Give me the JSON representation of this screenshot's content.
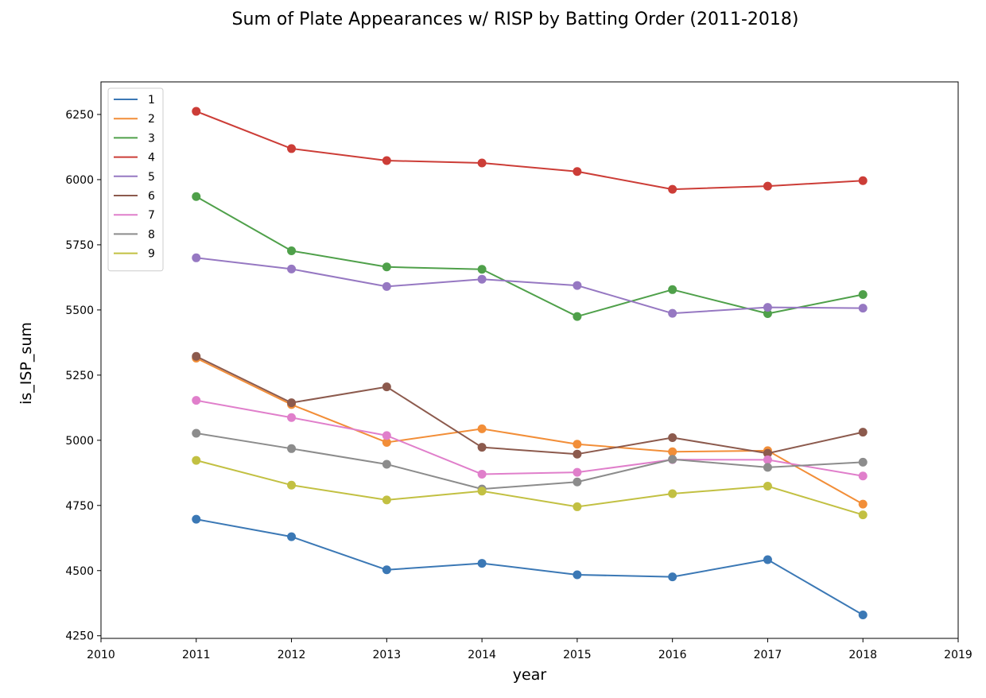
{
  "chart_data": {
    "type": "line",
    "title": "Sum of Plate Appearances w/ RISP by Batting Order (2011-2018)",
    "xlabel": "year",
    "ylabel": "is_ISP_sum",
    "x": [
      2011,
      2012,
      2013,
      2014,
      2015,
      2016,
      2017,
      2018
    ],
    "xlim": [
      2010,
      2019
    ],
    "ylim": [
      4240,
      6375
    ],
    "x_ticks": [
      2010,
      2011,
      2012,
      2013,
      2014,
      2015,
      2016,
      2017,
      2018,
      2019
    ],
    "y_ticks": [
      4250,
      4500,
      4750,
      5000,
      5250,
      5500,
      5750,
      6000,
      6250
    ],
    "grid": false,
    "legend_position": "top-left",
    "series": [
      {
        "name": "1",
        "color": "#3b78b5",
        "values": [
          4697,
          4630,
          4503,
          4528,
          4484,
          4476,
          4542,
          4330
        ]
      },
      {
        "name": "2",
        "color": "#f28e38",
        "values": [
          5315,
          5137,
          4992,
          5044,
          4985,
          4956,
          4960,
          4755
        ]
      },
      {
        "name": "3",
        "color": "#4fa04a",
        "values": [
          5935,
          5727,
          5665,
          5656,
          5475,
          5578,
          5486,
          5559
        ]
      },
      {
        "name": "4",
        "color": "#cc3d37",
        "values": [
          6262,
          6119,
          6073,
          6064,
          6031,
          5963,
          5975,
          5996
        ]
      },
      {
        "name": "5",
        "color": "#9678c2",
        "values": [
          5700,
          5657,
          5590,
          5618,
          5594,
          5487,
          5510,
          5507
        ]
      },
      {
        "name": "6",
        "color": "#8c5a4d",
        "values": [
          5322,
          5144,
          5205,
          4973,
          4947,
          5010,
          4950,
          5031
        ]
      },
      {
        "name": "7",
        "color": "#e07fcb",
        "values": [
          5153,
          5087,
          5018,
          4870,
          4877,
          4926,
          4925,
          4863
        ]
      },
      {
        "name": "8",
        "color": "#8c8c8c",
        "values": [
          5027,
          4968,
          4908,
          4813,
          4840,
          4927,
          4896,
          4916
        ]
      },
      {
        "name": "9",
        "color": "#c2c042",
        "values": [
          4923,
          4828,
          4771,
          4805,
          4745,
          4795,
          4824,
          4714
        ]
      }
    ]
  }
}
